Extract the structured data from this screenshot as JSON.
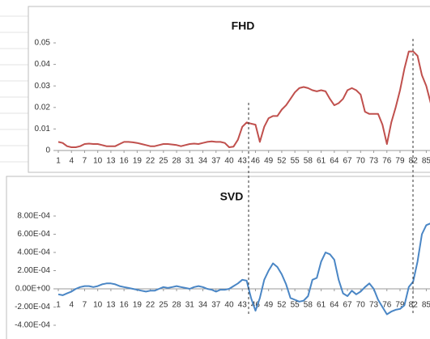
{
  "chart_data": [
    {
      "type": "line",
      "title": "FHD",
      "color": "#c0504d",
      "x": [
        1,
        2,
        3,
        4,
        5,
        6,
        7,
        8,
        9,
        10,
        11,
        12,
        13,
        14,
        15,
        16,
        17,
        18,
        19,
        20,
        21,
        22,
        23,
        24,
        25,
        26,
        27,
        28,
        29,
        30,
        31,
        32,
        33,
        34,
        35,
        36,
        37,
        38,
        39,
        40,
        41,
        42,
        43,
        44,
        45,
        46,
        47,
        48,
        49,
        50,
        51,
        52,
        53,
        54,
        55,
        56,
        57,
        58,
        59,
        60,
        61,
        62,
        63,
        64,
        65,
        66,
        67,
        68,
        69,
        70,
        71,
        72,
        73,
        74,
        75,
        76,
        77,
        78,
        79,
        80,
        81,
        82,
        83,
        84,
        85,
        86
      ],
      "values": [
        0.004,
        0.0035,
        0.002,
        0.0015,
        0.0015,
        0.002,
        0.003,
        0.0032,
        0.003,
        0.003,
        0.0025,
        0.002,
        0.002,
        0.002,
        0.003,
        0.004,
        0.004,
        0.0038,
        0.0035,
        0.003,
        0.0025,
        0.002,
        0.002,
        0.0025,
        0.003,
        0.003,
        0.0028,
        0.0025,
        0.002,
        0.0025,
        0.003,
        0.0032,
        0.003,
        0.0035,
        0.004,
        0.0042,
        0.004,
        0.004,
        0.0035,
        0.0015,
        0.0018,
        0.005,
        0.011,
        0.013,
        0.0125,
        0.012,
        0.004,
        0.011,
        0.015,
        0.016,
        0.016,
        0.019,
        0.021,
        0.024,
        0.027,
        0.029,
        0.0295,
        0.029,
        0.028,
        0.0275,
        0.028,
        0.0275,
        0.024,
        0.021,
        0.022,
        0.024,
        0.028,
        0.029,
        0.028,
        0.026,
        0.018,
        0.017,
        0.017,
        0.017,
        0.012,
        0.003,
        0.013,
        0.02,
        0.028,
        0.038,
        0.046,
        0.046,
        0.044,
        0.035,
        0.03,
        0.022
      ],
      "xlim": [
        1,
        86
      ],
      "xticks": [
        1,
        4,
        7,
        10,
        13,
        16,
        19,
        22,
        25,
        28,
        31,
        34,
        37,
        40,
        43,
        46,
        49,
        52,
        55,
        58,
        61,
        64,
        67,
        70,
        73,
        76,
        79,
        82,
        85
      ],
      "ylim": [
        0,
        0.05
      ],
      "yticks": [
        0,
        0.01,
        0.02,
        0.03,
        0.04,
        0.05
      ]
    },
    {
      "type": "line",
      "title": "SVD",
      "color": "#4a86c5",
      "x": [
        1,
        2,
        3,
        4,
        5,
        6,
        7,
        8,
        9,
        10,
        11,
        12,
        13,
        14,
        15,
        16,
        17,
        18,
        19,
        20,
        21,
        22,
        23,
        24,
        25,
        26,
        27,
        28,
        29,
        30,
        31,
        32,
        33,
        34,
        35,
        36,
        37,
        38,
        39,
        40,
        41,
        42,
        43,
        44,
        45,
        46,
        47,
        48,
        49,
        50,
        51,
        52,
        53,
        54,
        55,
        56,
        57,
        58,
        59,
        60,
        61,
        62,
        63,
        64,
        65,
        66,
        67,
        68,
        69,
        70,
        71,
        72,
        73,
        74,
        75,
        76,
        77,
        78,
        79,
        80,
        81,
        82,
        83,
        84,
        85,
        86
      ],
      "values": [
        -6e-05,
        -7e-05,
        -5e-05,
        -3e-05,
        0,
        2e-05,
        3e-05,
        3e-05,
        2e-05,
        3e-05,
        5e-05,
        6e-05,
        6e-05,
        5e-05,
        3e-05,
        2e-05,
        1e-05,
        0,
        -1e-05,
        -2e-05,
        -3e-05,
        -2e-05,
        -2e-05,
        0,
        2e-05,
        1e-05,
        2e-05,
        3e-05,
        2e-05,
        1e-05,
        0,
        2e-05,
        3e-05,
        2e-05,
        0,
        -1e-05,
        -3e-05,
        -1e-05,
        -1e-05,
        0,
        3e-05,
        6e-05,
        0.0001,
        9e-05,
        -0.0001,
        -0.00024,
        -0.0001,
        0.0001,
        0.0002,
        0.00028,
        0.00024,
        0.00016,
        5e-05,
        -0.0001,
        -0.00012,
        -0.00014,
        -0.00013,
        -8e-05,
        0.0001,
        0.00012,
        0.0003,
        0.0004,
        0.00038,
        0.00032,
        0.0001,
        -5e-05,
        -8e-05,
        -2e-05,
        -6e-05,
        -3e-05,
        2e-05,
        6e-05,
        0,
        -0.00012,
        -0.0002,
        -0.00028,
        -0.00025,
        -0.00023,
        -0.00022,
        -0.00018,
        2e-05,
        8e-05,
        0.0003,
        0.0006,
        0.0007,
        0.00072
      ],
      "xlim": [
        1,
        86
      ],
      "xticks": [
        1,
        4,
        7,
        10,
        13,
        16,
        19,
        22,
        25,
        28,
        31,
        34,
        37,
        40,
        43,
        46,
        49,
        52,
        55,
        58,
        61,
        64,
        67,
        70,
        73,
        76,
        79,
        82,
        85
      ],
      "ylim": [
        -0.0004,
        0.0008
      ],
      "yticks": [
        {
          "value": -0.0004,
          "label": "-4.00E-04"
        },
        {
          "value": -0.0002,
          "label": "-2.00E-04"
        },
        {
          "value": 0,
          "label": "0.00E+00"
        },
        {
          "value": 0.0002,
          "label": "2.00E-04"
        },
        {
          "value": 0.0004,
          "label": "4.00E-04"
        },
        {
          "value": 0.0006,
          "label": "6.00E-04"
        },
        {
          "value": 0.0008,
          "label": "8.00E-04"
        }
      ]
    }
  ]
}
